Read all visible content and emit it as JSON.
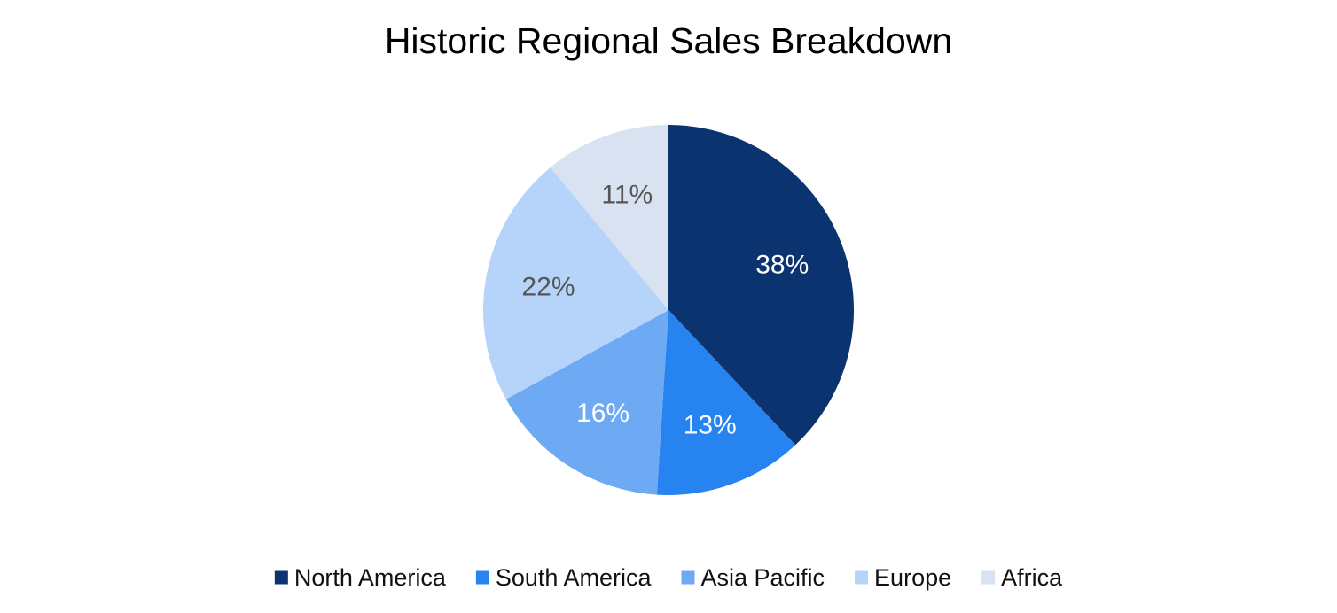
{
  "chart_data": {
    "type": "pie",
    "title": "Historic Regional Sales Breakdown",
    "categories": [
      "North America",
      "South America",
      "Asia Pacific",
      "Europe",
      "Africa"
    ],
    "values": [
      38,
      13,
      16,
      22,
      11
    ],
    "labels": [
      "38%",
      "13%",
      "16%",
      "22%",
      "11%"
    ],
    "unit": "%",
    "colors": [
      "#0a3370",
      "#2683f0",
      "#6ea9f3",
      "#b6d4f9",
      "#d8e2f0"
    ],
    "label_colors": [
      "#ffffff",
      "#ffffff",
      "#ffffff",
      "#555555",
      "#555555"
    ],
    "start_angle_deg": 0,
    "direction": "clockwise",
    "legend_position": "bottom"
  }
}
